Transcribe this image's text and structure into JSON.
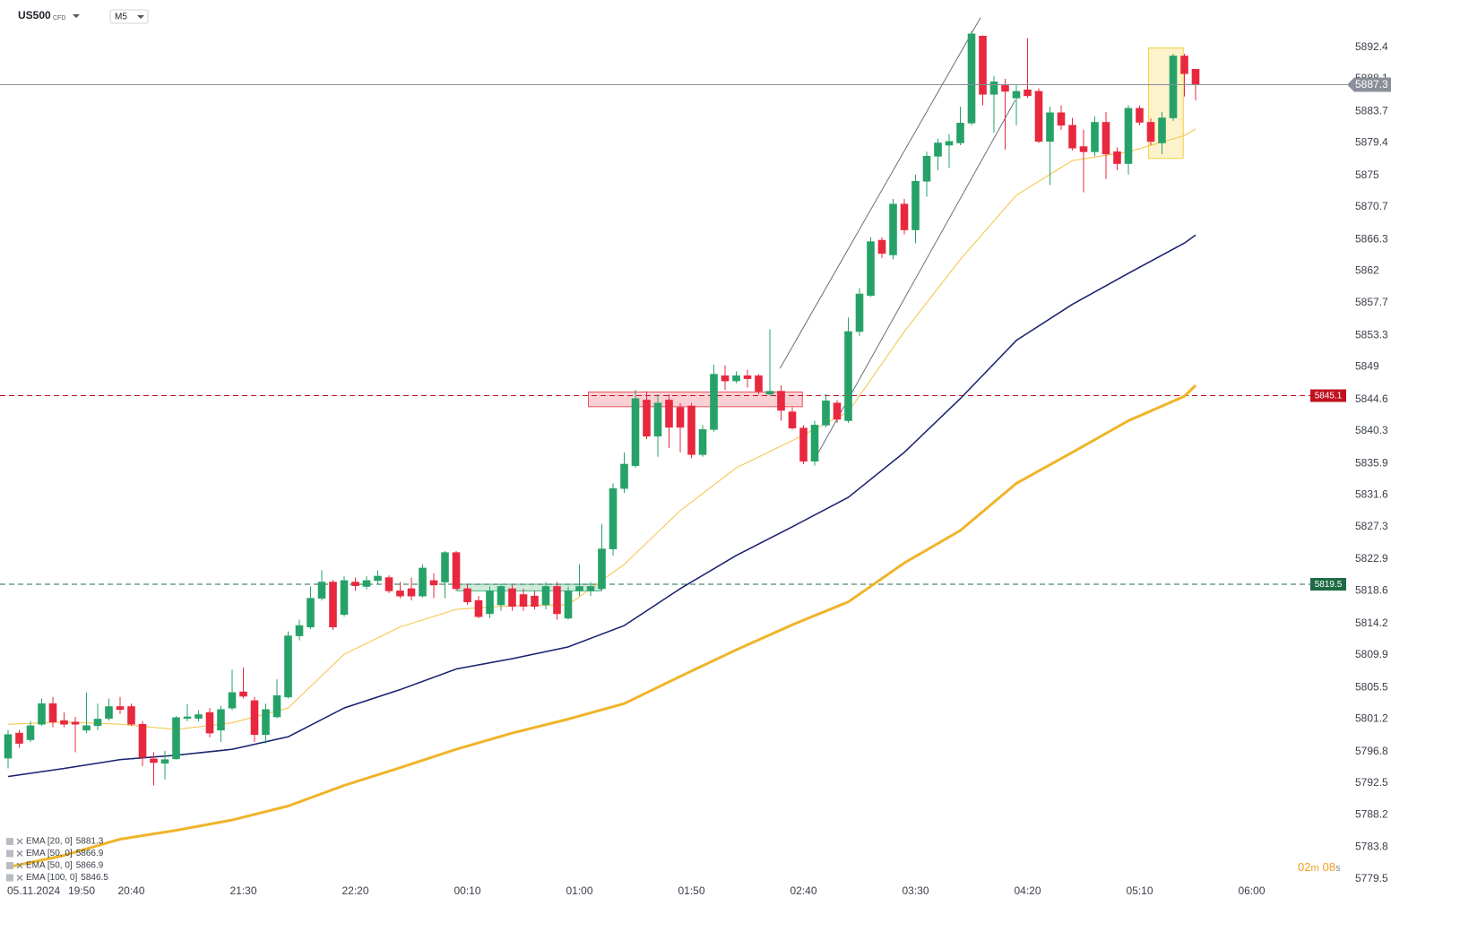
{
  "chart_data": {
    "type": "candlestick",
    "symbol": "US500",
    "instrument": "CFD",
    "timeframe": "M5",
    "date": "05.11.2024",
    "up_color": "#26a269",
    "down_color": "#e8283f",
    "grid": false,
    "ylim": [
      5779.0,
      5898.8
    ],
    "yticks": [
      5892.4,
      5888.1,
      5883.7,
      5879.4,
      5875.0,
      5870.7,
      5866.3,
      5862.0,
      5857.7,
      5853.3,
      5849.0,
      5844.6,
      5840.3,
      5835.9,
      5831.6,
      5827.3,
      5822.9,
      5818.6,
      5814.2,
      5809.9,
      5805.5,
      5801.2,
      5796.8,
      5792.5,
      5788.2,
      5783.8,
      5779.5
    ],
    "categories": [
      null,
      "19:50",
      null,
      null,
      null,
      null,
      null,
      null,
      null,
      null,
      null,
      "20:40",
      null,
      null,
      null,
      null,
      null,
      null,
      null,
      null,
      null,
      "21:30",
      null,
      null,
      null,
      null,
      null,
      null,
      null,
      null,
      null,
      "22:20",
      null,
      null,
      null,
      null,
      null,
      null,
      null,
      null,
      null,
      "00:10",
      null,
      null,
      null,
      null,
      null,
      null,
      null,
      null,
      null,
      "01:00",
      null,
      null,
      null,
      null,
      null,
      null,
      null,
      null,
      null,
      "01:50",
      null,
      null,
      null,
      null,
      null,
      null,
      null,
      null,
      null,
      "02:40",
      null,
      null,
      null,
      null,
      null,
      null,
      null,
      null,
      null,
      "03:30",
      null,
      null,
      null,
      null,
      null,
      null,
      null,
      null,
      null,
      "04:20",
      null,
      null,
      null,
      null,
      null,
      null,
      null,
      null,
      null,
      "05:10",
      null,
      null,
      null,
      null,
      null,
      null,
      null,
      null,
      null,
      "06:00"
    ],
    "open": [
      5795.9,
      5799.3,
      5798.4,
      5800.5,
      5803.3,
      5801.0,
      5800.8,
      5799.7,
      5800.3,
      5801.3,
      5802.9,
      5802.9,
      5800.5,
      5795.8,
      5795.2,
      5795.8,
      5801.3,
      5801.3,
      5802.1,
      5799.7,
      5802.7,
      5804.9,
      5803.7,
      5799.1,
      5801.5,
      5804.2,
      5812.5,
      5813.7,
      5817.6,
      5819.8,
      5815.4,
      5819.8,
      5819.2,
      5820.0,
      5820.4,
      5818.6,
      5818.9,
      5817.9,
      5820.0,
      5819.8,
      5823.8,
      5818.9,
      5817.3,
      5815.5,
      5816.7,
      5818.9,
      5818.1,
      5817.9,
      5816.7,
      5819.2,
      5814.9,
      5818.6,
      5818.6,
      5818.9,
      5824.3,
      5832.5,
      5835.6,
      5844.5,
      5839.6,
      5844.5,
      5843.5,
      5843.7,
      5837.1,
      5840.5,
      5847.8,
      5847.1,
      5847.8,
      5847.8,
      5845.3,
      5845.7,
      5842.9,
      5840.7,
      5836.2,
      5841.1,
      5844.1,
      5841.7,
      5853.8,
      5858.7,
      5866.2,
      5864.2,
      5871.1,
      5867.6,
      5874.2,
      5877.6,
      5879.1,
      5879.4,
      5882.1,
      5893.9,
      5886.0,
      5887.2,
      5885.5,
      5886.6,
      5886.4,
      5879.6,
      5883.5,
      5881.8,
      5878.9,
      5878.2,
      5882.2,
      5878.2,
      5876.6,
      5884.1,
      5882.2,
      5879.4,
      5882.8,
      5891.2,
      5889.4,
      null,
      null,
      null,
      null,
      null
    ],
    "high": [
      5799.7,
      5799.7,
      5800.9,
      5804.0,
      5804.2,
      5802.1,
      5801.5,
      5804.8,
      5803.3,
      5804.0,
      5804.2,
      5803.3,
      5800.9,
      5796.7,
      5796.9,
      5801.6,
      5803.2,
      5802.4,
      5802.7,
      5803.0,
      5807.9,
      5808.2,
      5804.2,
      5803.3,
      5806.6,
      5813.1,
      5814.7,
      5819.2,
      5821.4,
      5820.1,
      5820.6,
      5820.4,
      5820.6,
      5821.4,
      5820.7,
      5819.8,
      5820.4,
      5822.2,
      5821.0,
      5824.0,
      5824.0,
      5819.5,
      5817.9,
      5819.2,
      5819.5,
      5819.5,
      5818.9,
      5818.6,
      5819.8,
      5819.8,
      5819.2,
      5822.2,
      5819.8,
      5827.7,
      5833.2,
      5837.4,
      5845.9,
      5845.7,
      5845.3,
      5845.3,
      5844.1,
      5844.1,
      5841.1,
      5849.3,
      5849.2,
      5848.4,
      5848.6,
      5848.0,
      5854.1,
      5846.5,
      5843.5,
      5841.1,
      5841.7,
      5845.3,
      5844.5,
      5855.7,
      5859.7,
      5866.6,
      5866.6,
      5871.8,
      5871.8,
      5875.1,
      5878.2,
      5880.0,
      5880.6,
      5884.3,
      5894.6,
      5894.0,
      5888.5,
      5888.1,
      5887.3,
      5893.6,
      5886.8,
      5884.3,
      5884.5,
      5882.8,
      5881.2,
      5883.0,
      5883.6,
      5878.8,
      5884.5,
      5884.5,
      5882.7,
      5883.6,
      5891.5,
      5891.5,
      5889.4,
      null,
      null,
      null,
      null,
      null
    ],
    "low": [
      5794.5,
      5797.3,
      5798.1,
      5800.3,
      5800.1,
      5800.1,
      5796.7,
      5799.3,
      5799.7,
      5801.0,
      5801.9,
      5800.3,
      5794.8,
      5792.2,
      5793.0,
      5795.7,
      5800.9,
      5800.9,
      5798.7,
      5798.1,
      5802.4,
      5804.0,
      5798.1,
      5797.9,
      5801.3,
      5804.0,
      5811.9,
      5813.4,
      5817.3,
      5813.3,
      5815.1,
      5818.6,
      5818.8,
      5819.5,
      5818.3,
      5817.6,
      5817.3,
      5817.7,
      5817.6,
      5817.6,
      5818.6,
      5816.7,
      5814.9,
      5814.9,
      5815.9,
      5815.9,
      5815.9,
      5816.1,
      5816.1,
      5814.7,
      5814.7,
      5817.9,
      5817.9,
      5818.6,
      5823.4,
      5831.9,
      5835.3,
      5839.2,
      5836.8,
      5838.0,
      5837.4,
      5836.6,
      5836.8,
      5840.2,
      5845.9,
      5846.8,
      5846.2,
      5845.3,
      5845.1,
      5841.7,
      5840.5,
      5835.8,
      5835.6,
      5840.8,
      5841.4,
      5841.4,
      5853.2,
      5858.5,
      5863.8,
      5863.6,
      5867.0,
      5865.8,
      5872.1,
      5875.7,
      5876.0,
      5879.1,
      5881.8,
      5884.5,
      5880.8,
      5878.5,
      5881.8,
      5885.5,
      5879.4,
      5873.7,
      5881.2,
      5878.4,
      5872.7,
      5877.6,
      5874.5,
      5875.7,
      5875.1,
      5881.8,
      5879.1,
      5877.9,
      5882.4,
      5885.7,
      5885.2,
      null,
      null,
      null,
      null,
      null
    ],
    "close": [
      5799.1,
      5797.9,
      5800.3,
      5803.3,
      5800.8,
      5800.5,
      5800.5,
      5800.3,
      5801.2,
      5802.9,
      5802.5,
      5800.5,
      5796.0,
      5795.3,
      5795.7,
      5801.4,
      5801.5,
      5801.8,
      5799.3,
      5802.5,
      5804.8,
      5804.3,
      5799.1,
      5802.5,
      5804.4,
      5812.5,
      5813.9,
      5817.6,
      5819.8,
      5813.7,
      5820.0,
      5819.3,
      5820.0,
      5820.6,
      5818.6,
      5817.9,
      5817.9,
      5821.7,
      5819.4,
      5823.8,
      5818.9,
      5817.1,
      5815.1,
      5818.6,
      5819.2,
      5816.5,
      5816.5,
      5816.5,
      5819.2,
      5815.5,
      5818.6,
      5819.2,
      5819.2,
      5824.3,
      5832.5,
      5835.8,
      5844.7,
      5839.6,
      5844.1,
      5840.8,
      5840.8,
      5837.1,
      5840.5,
      5848.0,
      5847.1,
      5847.8,
      5847.4,
      5845.7,
      5845.7,
      5843.1,
      5840.7,
      5836.2,
      5841.1,
      5844.4,
      5841.9,
      5853.8,
      5858.9,
      5866.0,
      5864.4,
      5871.1,
      5867.6,
      5874.2,
      5877.6,
      5879.4,
      5879.6,
      5882.1,
      5894.2,
      5886.0,
      5887.7,
      5886.4,
      5886.4,
      5885.8,
      5879.6,
      5883.5,
      5881.8,
      5878.7,
      5878.2,
      5882.2,
      5877.9,
      5876.6,
      5884.1,
      5882.2,
      5879.6,
      5882.8,
      5891.2,
      5888.8,
      5887.3,
      null,
      null,
      null,
      null,
      null
    ],
    "current_price_color": "#8a8f99",
    "series": [
      {
        "name": "EMA [20, 0]",
        "color": "#f5c141",
        "line_width": 1,
        "x": [
          0,
          5,
          10,
          15,
          20,
          25,
          30,
          35,
          40,
          45,
          50,
          55,
          60,
          65,
          70,
          75,
          80,
          85,
          90,
          95,
          100,
          105,
          106
        ],
        "values": [
          5800.5,
          5800.8,
          5800.5,
          5799.8,
          5800.7,
          5802.7,
          5810.0,
          5813.7,
          5816.1,
          5816.6,
          5816.7,
          5822.2,
          5829.5,
          5835.3,
          5839.0,
          5842.9,
          5853.8,
          5863.6,
          5872.3,
          5877.0,
          5878.2,
          5880.4,
          5881.3
        ]
      },
      {
        "name": "EMA [50, 0]",
        "color": "#1b2470",
        "line_width": 1.4,
        "x": [
          0,
          5,
          10,
          15,
          20,
          25,
          30,
          35,
          40,
          45,
          50,
          55,
          60,
          65,
          70,
          75,
          80,
          85,
          90,
          95,
          100,
          105,
          106
        ],
        "values": [
          5793.4,
          5794.5,
          5795.7,
          5796.3,
          5797.1,
          5798.8,
          5802.7,
          5805.2,
          5808.0,
          5809.4,
          5811.0,
          5813.9,
          5818.9,
          5823.4,
          5827.3,
          5831.3,
          5837.4,
          5844.7,
          5852.6,
          5857.5,
          5861.7,
          5865.8,
          5866.9
        ]
      },
      {
        "name": "EMA [50, 0]",
        "color": "#1b2470",
        "line_width": 1.4,
        "x": [
          0,
          5,
          10,
          15,
          20,
          25,
          30,
          35,
          40,
          45,
          50,
          55,
          60,
          65,
          70,
          75,
          80,
          85,
          90,
          95,
          100,
          105,
          106
        ],
        "values": [
          5793.4,
          5794.5,
          5795.7,
          5796.3,
          5797.1,
          5798.8,
          5802.7,
          5805.2,
          5808.0,
          5809.4,
          5811.0,
          5813.9,
          5818.9,
          5823.4,
          5827.3,
          5831.3,
          5837.4,
          5844.7,
          5852.6,
          5857.5,
          5861.7,
          5865.8,
          5866.9
        ]
      },
      {
        "name": "EMA [100, 0]",
        "color": "#f0b429",
        "line_width": 3,
        "x": [
          0,
          5,
          10,
          15,
          20,
          25,
          30,
          35,
          40,
          45,
          50,
          55,
          60,
          65,
          70,
          75,
          80,
          85,
          90,
          95,
          100,
          105,
          106
        ],
        "values": [
          5781.1,
          5782.7,
          5784.9,
          5786.1,
          5787.5,
          5789.4,
          5792.2,
          5794.6,
          5797.1,
          5799.3,
          5801.2,
          5803.3,
          5807.0,
          5810.6,
          5814.0,
          5817.1,
          5822.4,
          5826.8,
          5833.2,
          5837.4,
          5841.7,
          5845.0,
          5846.5
        ]
      }
    ],
    "price_lines": [
      {
        "value": 5845.1,
        "color": "#c0121e"
      },
      {
        "value": 5819.5,
        "color": "#1e6b44"
      }
    ],
    "zones": [
      {
        "x": [
          51.8,
          70.9
        ],
        "y": [
          5843.6,
          5845.6
        ],
        "color": "#e8283f"
      },
      {
        "x": [
          40.1,
          52.9
        ],
        "y": [
          5818.6,
          5819.5
        ],
        "color": "#26a269"
      },
      {
        "x": [
          101.8,
          104.9
        ],
        "y": [
          5877.3,
          5892.3
        ],
        "color": "#f0c419"
      }
    ],
    "trendlines": [
      {
        "x": [
          68.9,
          86.8
        ],
        "y": [
          5848.8,
          5896.4
        ],
        "color": "#6b6f78"
      },
      {
        "x": [
          71.9,
          89.9
        ],
        "y": [
          5836.2,
          5885.2
        ],
        "color": "#6b6f78"
      }
    ],
    "timer": [
      "02",
      "m",
      "08",
      "s"
    ]
  }
}
